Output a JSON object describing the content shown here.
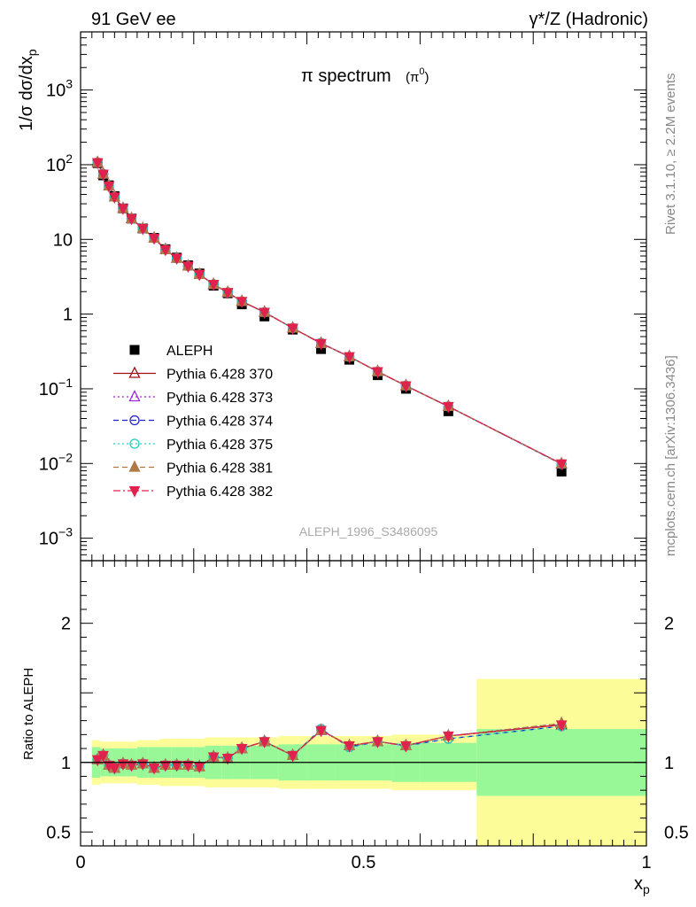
{
  "header": {
    "left": "91 GeV ee",
    "right": "γ*/Z (Hadronic)"
  },
  "side_labels": {
    "rivet": "Rivet 3.1.10, ≥ 2.2M events",
    "mcplots": "mcplots.cern.ch [arXiv:1306.3436]"
  },
  "chart_data": [
    {
      "type": "scatter",
      "title": "π spectrum",
      "title_suffix": "(π0)",
      "watermark": "ALEPH_1996_S3486095",
      "ylabel": "1/σ dσ/dxp",
      "yscale": "log",
      "ylim": [
        0.0005,
        6000
      ],
      "xlim": [
        0,
        1
      ],
      "y_ticks": [
        "10^-3",
        "10^-2",
        "10^-1",
        "1",
        "10",
        "10^2",
        "10^3"
      ],
      "legend_position": "lower-left",
      "x": [
        0.03,
        0.04,
        0.05,
        0.06,
        0.075,
        0.09,
        0.11,
        0.13,
        0.15,
        0.17,
        0.19,
        0.21,
        0.235,
        0.26,
        0.285,
        0.325,
        0.375,
        0.425,
        0.475,
        0.525,
        0.575,
        0.65,
        0.85
      ],
      "series": [
        {
          "name": "ALEPH",
          "marker": "square",
          "color": "#000000",
          "values": [
            105,
            72,
            53,
            38,
            26,
            19,
            14,
            10.5,
            7.4,
            5.7,
            4.5,
            3.5,
            2.4,
            1.9,
            1.35,
            0.93,
            0.62,
            0.34,
            0.245,
            0.152,
            0.1,
            0.05,
            0.0078
          ]
        },
        {
          "name": "Pythia 6.428 370",
          "marker": "triangle-open",
          "color": "#a01010",
          "dash": "solid",
          "values": [
            107,
            75,
            52,
            37,
            26,
            19,
            14,
            10.4,
            7.3,
            5.6,
            4.4,
            3.4,
            2.5,
            1.95,
            1.48,
            1.06,
            0.65,
            0.405,
            0.27,
            0.17,
            0.11,
            0.058,
            0.0099
          ]
        },
        {
          "name": "Pythia 6.428 373",
          "marker": "triangle-open",
          "color": "#9a28d8",
          "dash": "dotted",
          "values": [
            107,
            75,
            52,
            37,
            26,
            19,
            14,
            10.4,
            7.3,
            5.6,
            4.4,
            3.4,
            2.5,
            1.95,
            1.48,
            1.06,
            0.65,
            0.405,
            0.27,
            0.17,
            0.11,
            0.058,
            0.0099
          ]
        },
        {
          "name": "Pythia 6.428 374",
          "marker": "circle-open",
          "color": "#2222cc",
          "dash": "dashed",
          "values": [
            107,
            75,
            52,
            37,
            26,
            19,
            14,
            10.4,
            7.3,
            5.6,
            4.4,
            3.4,
            2.5,
            1.95,
            1.48,
            1.06,
            0.65,
            0.41,
            0.268,
            0.17,
            0.11,
            0.058,
            0.0098
          ]
        },
        {
          "name": "Pythia 6.428 375",
          "marker": "circle-open",
          "color": "#20d0c0",
          "dash": "dotted",
          "values": [
            107,
            75,
            52,
            37,
            26,
            19,
            14,
            10.4,
            7.3,
            5.6,
            4.4,
            3.4,
            2.5,
            1.95,
            1.48,
            1.06,
            0.65,
            0.41,
            0.268,
            0.17,
            0.11,
            0.058,
            0.0098
          ]
        },
        {
          "name": "Pythia 6.428 381",
          "marker": "triangle-filled",
          "color": "#b07a48",
          "dash": "dashed",
          "values": [
            107,
            75,
            52,
            37,
            26,
            19,
            14,
            10.4,
            7.3,
            5.6,
            4.4,
            3.4,
            2.5,
            1.95,
            1.48,
            1.06,
            0.65,
            0.405,
            0.27,
            0.17,
            0.11,
            0.058,
            0.0099
          ]
        },
        {
          "name": "Pythia 6.428 382",
          "marker": "triangle-down-filled",
          "color": "#e0224c",
          "dash": "dashdot",
          "values": [
            107,
            75,
            52,
            37,
            26,
            19,
            14,
            10.4,
            7.3,
            5.6,
            4.4,
            3.4,
            2.5,
            1.95,
            1.48,
            1.06,
            0.65,
            0.405,
            0.27,
            0.17,
            0.11,
            0.058,
            0.0099
          ]
        }
      ]
    },
    {
      "type": "line",
      "ylabel": "Ratio to ALEPH",
      "xlabel": "xp",
      "xlim": [
        0,
        1
      ],
      "ylim": [
        0.4,
        2.45
      ],
      "y_ticks": [
        "0.5",
        "1",
        "2"
      ],
      "x_ticks": [
        "0",
        "0.5",
        "1"
      ],
      "bands": {
        "edges": [
          0.02,
          0.035,
          0.045,
          0.055,
          0.065,
          0.08,
          0.1,
          0.12,
          0.14,
          0.16,
          0.18,
          0.2,
          0.22,
          0.25,
          0.27,
          0.3,
          0.35,
          0.4,
          0.45,
          0.5,
          0.55,
          0.6,
          0.7,
          1.0
        ],
        "inner": [
          0.11,
          0.1,
          0.1,
          0.1,
          0.1,
          0.1,
          0.11,
          0.11,
          0.11,
          0.11,
          0.11,
          0.11,
          0.12,
          0.12,
          0.12,
          0.12,
          0.13,
          0.13,
          0.13,
          0.13,
          0.14,
          0.14,
          0.24
        ],
        "outer": [
          0.16,
          0.15,
          0.15,
          0.15,
          0.15,
          0.15,
          0.16,
          0.16,
          0.17,
          0.17,
          0.17,
          0.17,
          0.18,
          0.18,
          0.18,
          0.18,
          0.19,
          0.19,
          0.19,
          0.19,
          0.2,
          0.2,
          0.6
        ],
        "inner_color": "#98f898",
        "outer_color": "#fcfc98"
      },
      "x": [
        0.03,
        0.04,
        0.05,
        0.06,
        0.075,
        0.09,
        0.11,
        0.13,
        0.15,
        0.17,
        0.19,
        0.21,
        0.235,
        0.26,
        0.285,
        0.325,
        0.375,
        0.425,
        0.475,
        0.525,
        0.575,
        0.65,
        0.85
      ],
      "series": [
        {
          "name": "Pythia 6.428 370",
          "marker": "triangle-open",
          "color": "#a01010",
          "dash": "solid",
          "values": [
            1.02,
            1.05,
            0.98,
            0.96,
            0.99,
            0.98,
            0.99,
            0.96,
            0.98,
            0.98,
            0.98,
            0.97,
            1.04,
            1.03,
            1.1,
            1.15,
            1.05,
            1.23,
            1.12,
            1.15,
            1.12,
            1.19,
            1.27
          ]
        },
        {
          "name": "Pythia 6.428 373",
          "marker": "triangle-open",
          "color": "#9a28d8",
          "dash": "dotted",
          "values": [
            1.02,
            1.05,
            0.98,
            0.96,
            0.99,
            0.98,
            0.99,
            0.96,
            0.98,
            0.98,
            0.98,
            0.97,
            1.04,
            1.03,
            1.1,
            1.15,
            1.05,
            1.23,
            1.12,
            1.15,
            1.12,
            1.19,
            1.28
          ]
        },
        {
          "name": "Pythia 6.428 374",
          "marker": "circle-open",
          "color": "#2222cc",
          "dash": "dashed",
          "values": [
            1.02,
            1.05,
            0.98,
            0.96,
            0.99,
            0.98,
            0.99,
            0.96,
            0.98,
            0.98,
            0.98,
            0.97,
            1.04,
            1.03,
            1.1,
            1.15,
            1.05,
            1.24,
            1.11,
            1.15,
            1.12,
            1.17,
            1.26
          ]
        },
        {
          "name": "Pythia 6.428 375",
          "marker": "circle-open",
          "color": "#20d0c0",
          "dash": "dotted",
          "values": [
            1.02,
            1.05,
            0.98,
            0.96,
            0.99,
            0.98,
            0.99,
            0.96,
            0.98,
            0.98,
            0.98,
            0.97,
            1.04,
            1.03,
            1.1,
            1.15,
            1.05,
            1.24,
            1.11,
            1.15,
            1.12,
            1.17,
            1.26
          ]
        },
        {
          "name": "Pythia 6.428 381",
          "marker": "triangle-filled",
          "color": "#b07a48",
          "dash": "dashed",
          "values": [
            1.02,
            1.05,
            0.98,
            0.96,
            0.99,
            0.98,
            0.99,
            0.96,
            0.98,
            0.98,
            0.98,
            0.97,
            1.04,
            1.03,
            1.1,
            1.15,
            1.05,
            1.23,
            1.12,
            1.15,
            1.12,
            1.19,
            1.28
          ]
        },
        {
          "name": "Pythia 6.428 382",
          "marker": "triangle-down-filled",
          "color": "#e0224c",
          "dash": "dashdot",
          "values": [
            1.02,
            1.05,
            0.98,
            0.96,
            0.99,
            0.98,
            0.99,
            0.96,
            0.98,
            0.98,
            0.98,
            0.97,
            1.04,
            1.03,
            1.1,
            1.15,
            1.05,
            1.23,
            1.12,
            1.15,
            1.12,
            1.19,
            1.27
          ]
        }
      ]
    }
  ]
}
